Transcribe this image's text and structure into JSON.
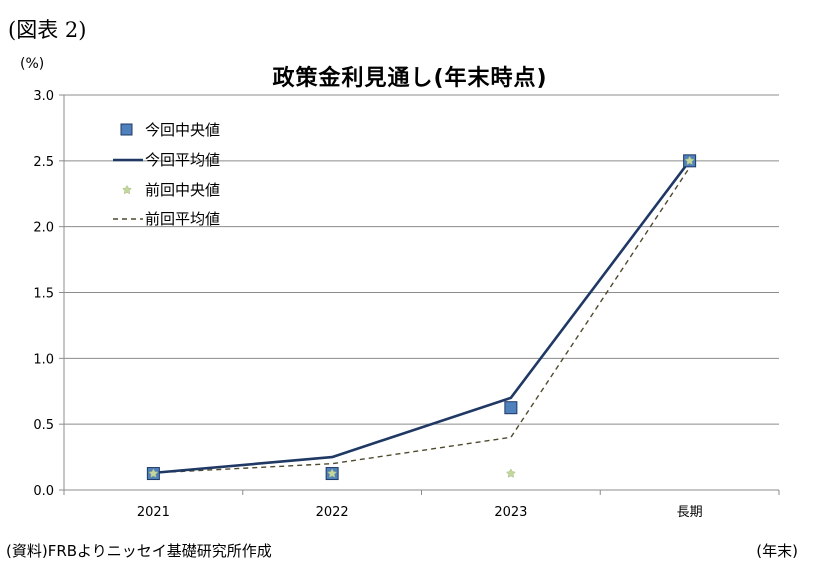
{
  "figure_label": "(図表 2)",
  "y_unit": "(%)",
  "source_note": "(資料)FRBよりニッセイ基礎研究所作成",
  "x_unit": "(年末)",
  "chart_data": {
    "type": "line",
    "title": "政策金利見通し(年末時点)",
    "categories": [
      "2021",
      "2022",
      "2023",
      "長期"
    ],
    "ylim": [
      0,
      3.0
    ],
    "yticks": [
      "0.0",
      "0.5",
      "1.0",
      "1.5",
      "2.0",
      "2.5",
      "3.0"
    ],
    "grid": true,
    "legend_position": "top-left",
    "series": [
      {
        "name": "今回中央値",
        "style": "marker-square",
        "color": "#4f81bd",
        "edge": "#1f3864",
        "values": [
          0.125,
          0.125,
          0.625,
          2.5
        ]
      },
      {
        "name": "今回平均値",
        "style": "solid-line",
        "color": "#1f3864",
        "values": [
          0.13,
          0.25,
          0.7,
          2.5
        ]
      },
      {
        "name": "前回中央値",
        "style": "marker-dot",
        "color": "#c3d69b",
        "values": [
          0.125,
          0.125,
          0.125,
          2.5
        ]
      },
      {
        "name": "前回平均値",
        "style": "dashed-line",
        "color": "#4f4a2e",
        "values": [
          0.13,
          0.2,
          0.4,
          2.45
        ]
      }
    ]
  }
}
